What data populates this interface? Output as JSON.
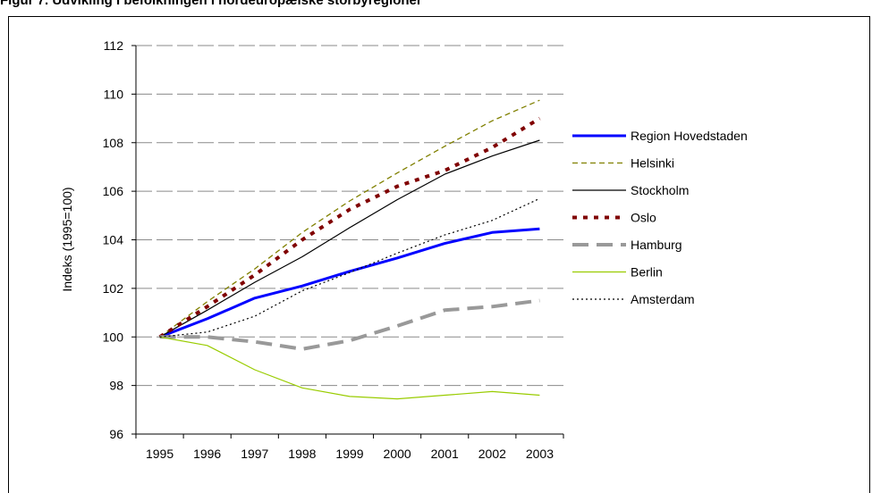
{
  "heading": "Figur 7. Udvikling i befolkningen i nordeuropæiske storbyregioner",
  "chart_data": {
    "type": "line",
    "title": "",
    "xlabel": "",
    "ylabel": "Indeks (1995=100)",
    "categories": [
      "1995",
      "1996",
      "1997",
      "1998",
      "1999",
      "2000",
      "2001",
      "2002",
      "2003"
    ],
    "ylim": [
      96,
      112
    ],
    "yticks": [
      "96",
      "98",
      "100",
      "102",
      "104",
      "106",
      "108",
      "110",
      "112"
    ],
    "grid": "horizontal",
    "legend_position": "right",
    "series": [
      {
        "name": "Region Hovedstaden",
        "values": [
          100,
          100.75,
          101.6,
          102.1,
          102.7,
          103.25,
          103.85,
          104.3,
          104.45
        ],
        "color": "#0000ff",
        "style": "solid-thick"
      },
      {
        "name": "Helsinki",
        "values": [
          100,
          101.45,
          102.8,
          104.3,
          105.6,
          106.75,
          107.85,
          108.9,
          109.75
        ],
        "color": "#808000",
        "style": "dashed-thin"
      },
      {
        "name": "Stockholm",
        "values": [
          100,
          101.1,
          102.25,
          103.3,
          104.5,
          105.65,
          106.7,
          107.45,
          108.1
        ],
        "color": "#000000",
        "style": "solid-thin"
      },
      {
        "name": "Oslo",
        "values": [
          100,
          101.25,
          102.55,
          104.0,
          105.25,
          106.2,
          106.85,
          107.8,
          109.0
        ],
        "color": "#800000",
        "style": "dotted-thick"
      },
      {
        "name": "Hamburg",
        "values": [
          100,
          100.0,
          99.8,
          99.5,
          99.85,
          100.45,
          101.1,
          101.25,
          101.5
        ],
        "color": "#999999",
        "style": "dashed-thick"
      },
      {
        "name": "Berlin",
        "values": [
          100,
          99.65,
          98.65,
          97.9,
          97.55,
          97.45,
          97.6,
          97.75,
          97.6
        ],
        "color": "#99cc00",
        "style": "solid-thin"
      },
      {
        "name": "Amsterdam",
        "values": [
          100,
          100.2,
          100.85,
          101.9,
          102.65,
          103.45,
          104.2,
          104.8,
          105.7
        ],
        "color": "#000000",
        "style": "dotted-thin"
      }
    ]
  }
}
